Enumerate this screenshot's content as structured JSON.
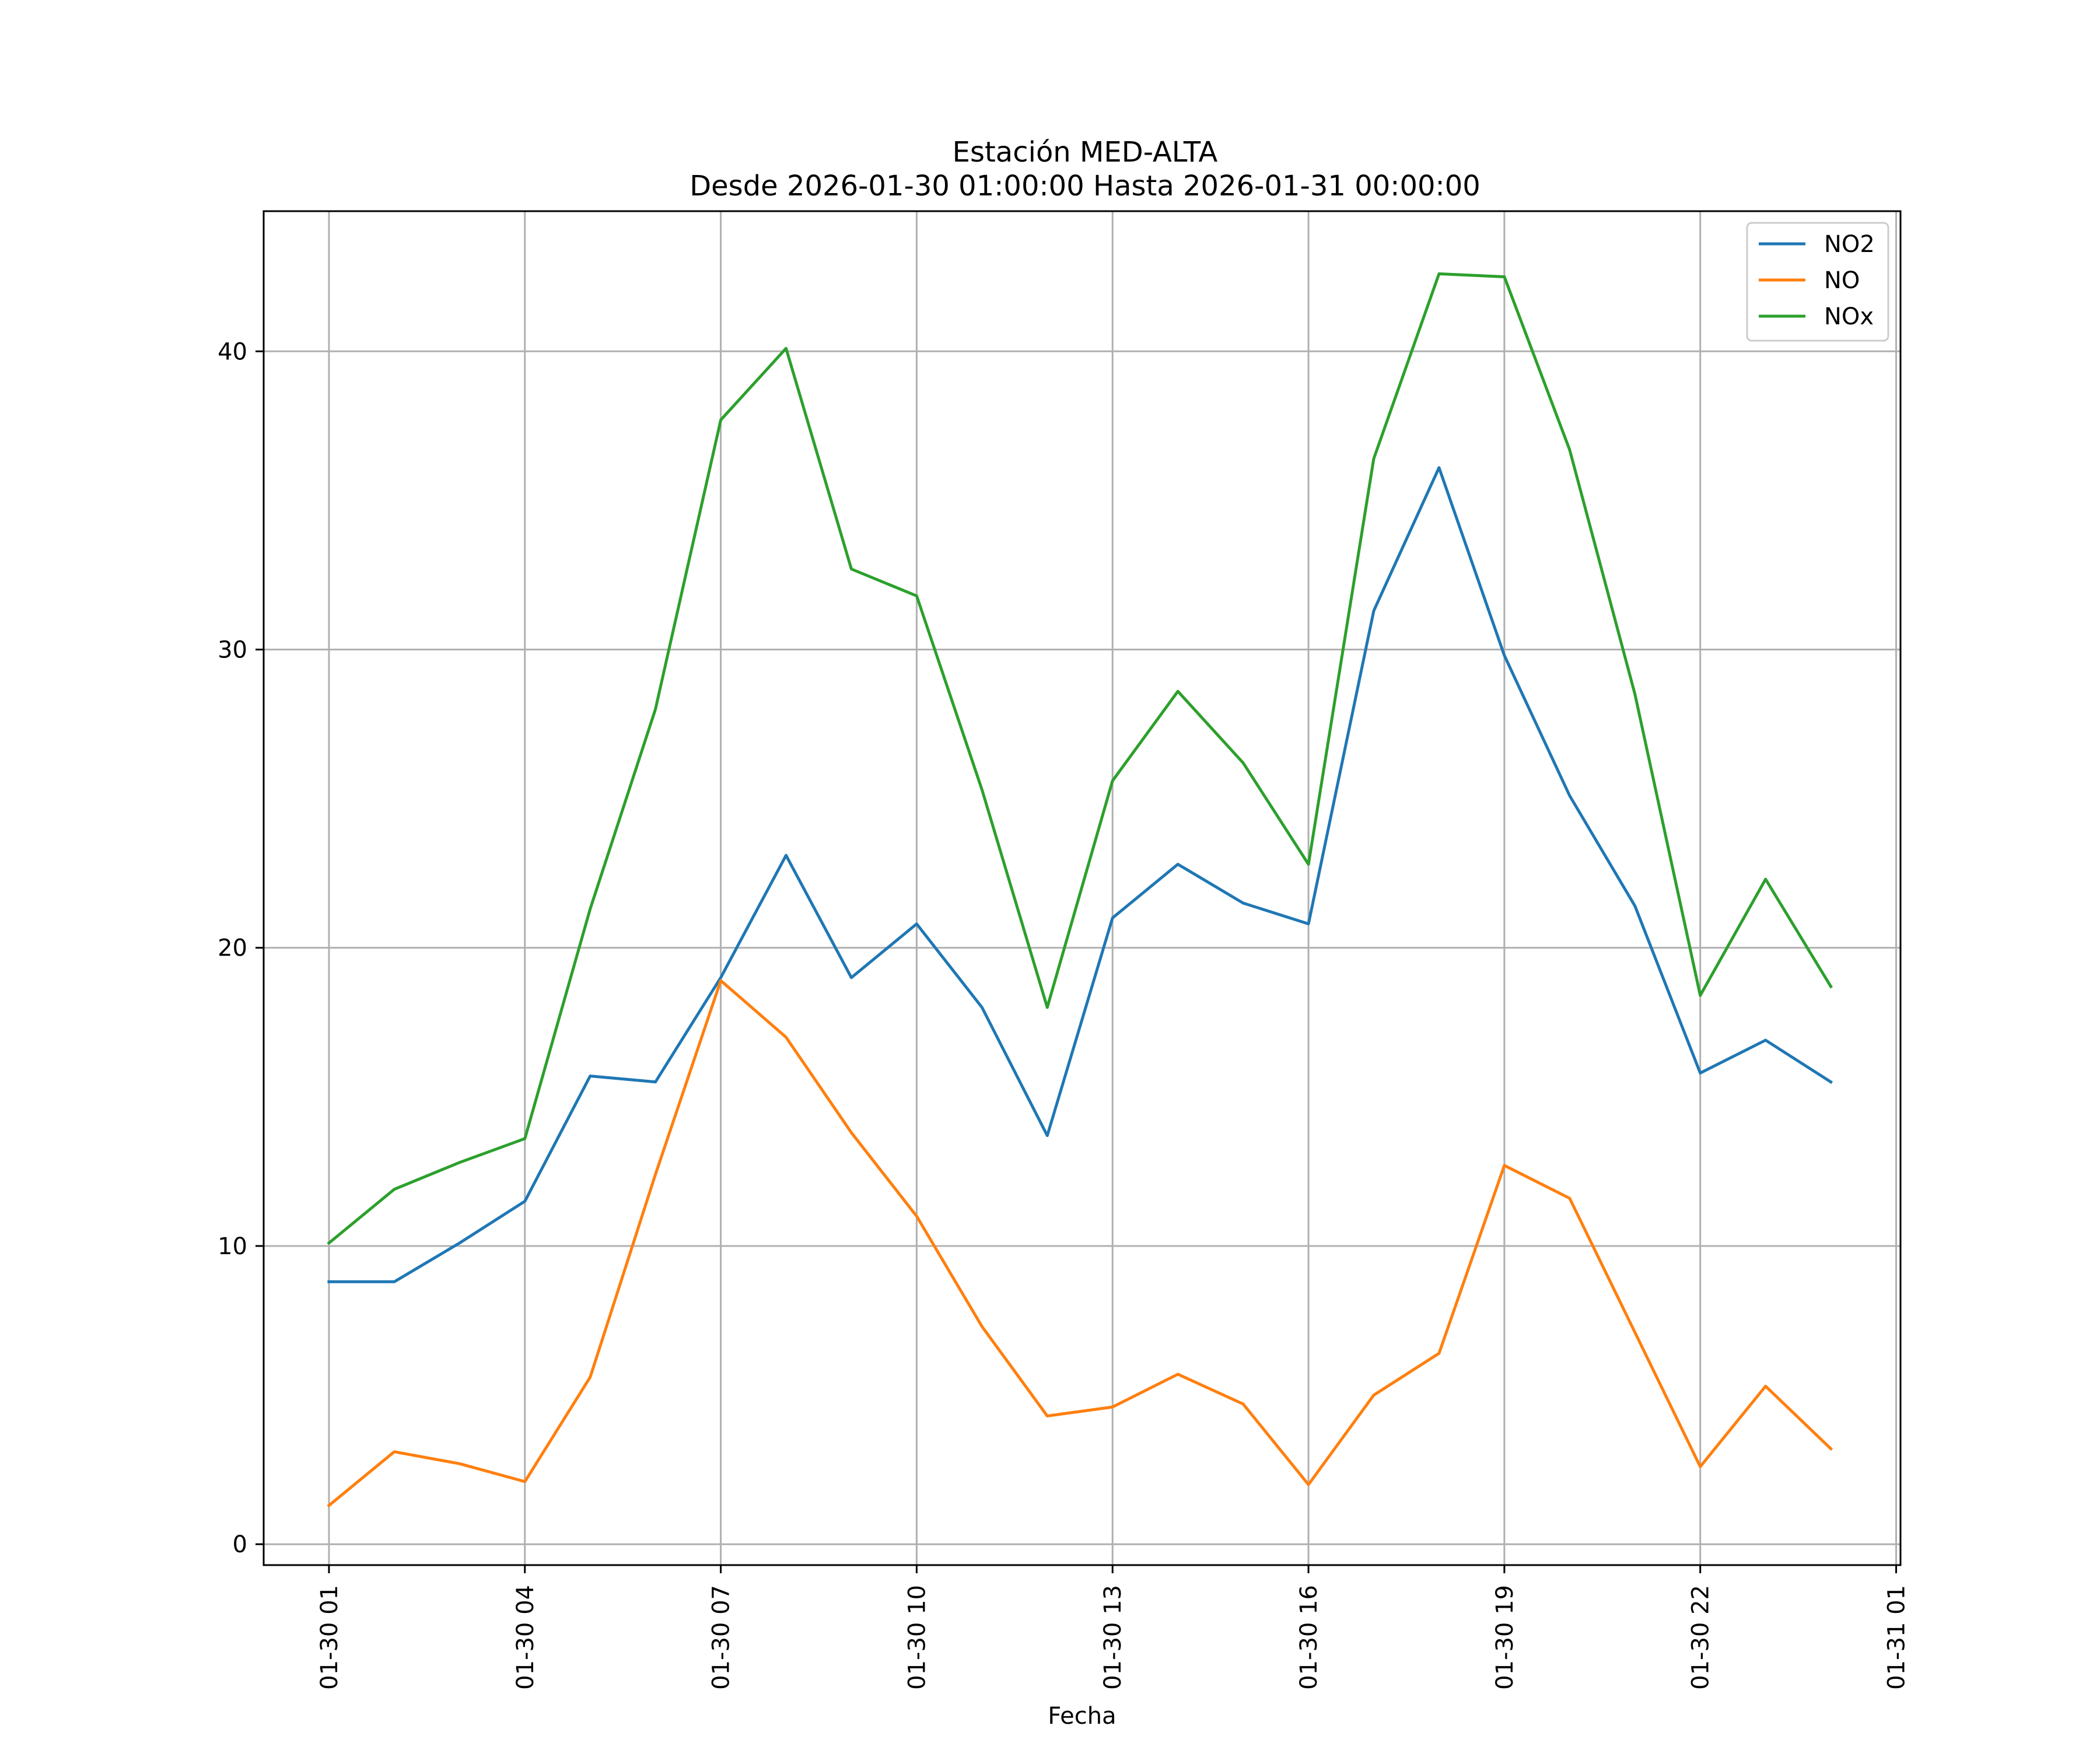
{
  "chart_data": {
    "type": "line",
    "title": "Estación MED-ALTA",
    "subtitle": "Desde 2026-01-30 01:00:00 Hasta 2026-01-31 00:00:00",
    "xlabel": "Fecha",
    "ylabel": "",
    "x": [
      "2026-01-30 01:00",
      "2026-01-30 02:00",
      "2026-01-30 03:00",
      "2026-01-30 04:00",
      "2026-01-30 05:00",
      "2026-01-30 06:00",
      "2026-01-30 07:00",
      "2026-01-30 08:00",
      "2026-01-30 09:00",
      "2026-01-30 10:00",
      "2026-01-30 11:00",
      "2026-01-30 12:00",
      "2026-01-30 13:00",
      "2026-01-30 14:00",
      "2026-01-30 15:00",
      "2026-01-30 16:00",
      "2026-01-30 17:00",
      "2026-01-30 18:00",
      "2026-01-30 19:00",
      "2026-01-30 20:00",
      "2026-01-30 21:00",
      "2026-01-30 22:00",
      "2026-01-30 23:00",
      "2026-01-31 00:00"
    ],
    "xlim": [
      "2026-01-30 00:00",
      "2026-01-31 01:04"
    ],
    "ylim": [
      -0.7,
      44.7
    ],
    "x_ticks": [
      "01-30 01",
      "01-30 04",
      "01-30 07",
      "01-30 10",
      "01-30 13",
      "01-30 16",
      "01-30 19",
      "01-30 22",
      "01-31 01"
    ],
    "x_tick_values": [
      "2026-01-30 01:00",
      "2026-01-30 04:00",
      "2026-01-30 07:00",
      "2026-01-30 10:00",
      "2026-01-30 13:00",
      "2026-01-30 16:00",
      "2026-01-30 19:00",
      "2026-01-30 22:00",
      "2026-01-31 01:00"
    ],
    "y_ticks": [
      0,
      10,
      20,
      30,
      40
    ],
    "grid": true,
    "legend": "top-right",
    "series": [
      {
        "name": "NO2",
        "color": "#1f77b4",
        "values": [
          8.8,
          8.8,
          10.1,
          11.5,
          15.7,
          15.5,
          19.0,
          23.1,
          19.0,
          20.8,
          18.0,
          13.7,
          21.0,
          22.8,
          21.5,
          20.8,
          31.3,
          36.1,
          29.8,
          25.1,
          21.4,
          15.8,
          16.9,
          15.5
        ]
      },
      {
        "name": "NO",
        "color": "#ff7f0e",
        "values": [
          1.3,
          3.1,
          2.7,
          2.1,
          5.6,
          12.4,
          18.9,
          17.0,
          13.8,
          11.0,
          7.3,
          4.3,
          4.6,
          5.7,
          4.7,
          2.0,
          5.0,
          6.4,
          12.7,
          11.6,
          7.1,
          2.6,
          5.3,
          3.2
        ]
      },
      {
        "name": "NOx",
        "color": "#2ca02c",
        "values": [
          10.1,
          11.9,
          12.8,
          13.6,
          21.3,
          28.0,
          37.7,
          40.1,
          32.7,
          31.8,
          25.3,
          18.0,
          25.6,
          28.6,
          26.2,
          22.8,
          36.4,
          42.6,
          42.5,
          36.7,
          28.5,
          18.4,
          22.3,
          18.7
        ]
      }
    ]
  }
}
